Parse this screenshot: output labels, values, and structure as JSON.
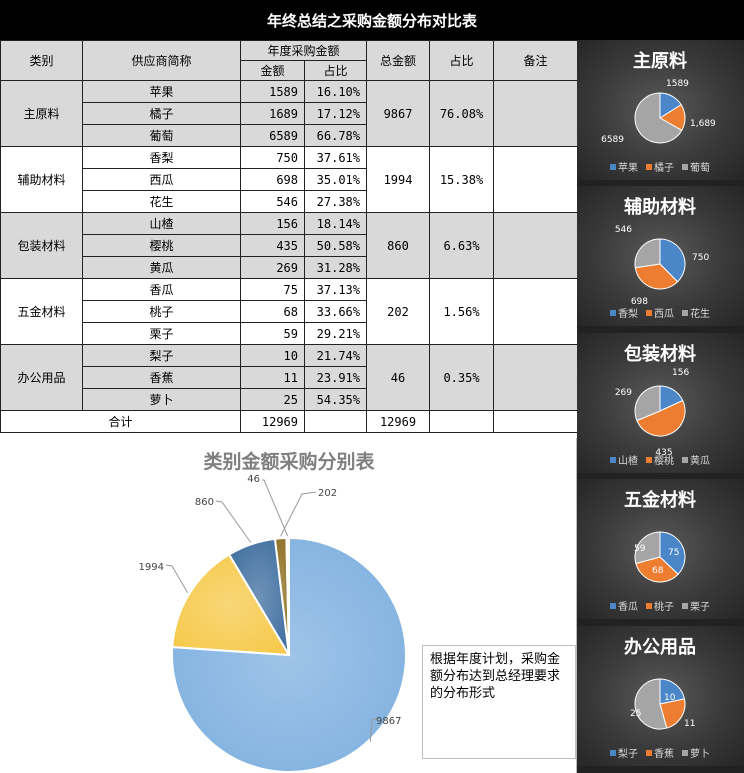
{
  "title": "年终总结之采购金额分布对比表",
  "table": {
    "headers": {
      "category": "类别",
      "supplier": "供应商简称",
      "annual": "年度采购金额",
      "amount": "金额",
      "ratio": "占比",
      "total": "总金额",
      "share": "占比",
      "remark": "备注"
    },
    "groups": [
      {
        "category": "主原料",
        "total": "9867",
        "share": "76.08%",
        "rows": [
          {
            "name": "苹果",
            "amount": "1589",
            "ratio": "16.10%"
          },
          {
            "name": "橘子",
            "amount": "1689",
            "ratio": "17.12%"
          },
          {
            "name": "葡萄",
            "amount": "6589",
            "ratio": "66.78%"
          }
        ]
      },
      {
        "category": "辅助材料",
        "total": "1994",
        "share": "15.38%",
        "rows": [
          {
            "name": "香梨",
            "amount": "750",
            "ratio": "37.61%"
          },
          {
            "name": "西瓜",
            "amount": "698",
            "ratio": "35.01%"
          },
          {
            "name": "花生",
            "amount": "546",
            "ratio": "27.38%"
          }
        ]
      },
      {
        "category": "包装材料",
        "total": "860",
        "share": "6.63%",
        "rows": [
          {
            "name": "山楂",
            "amount": "156",
            "ratio": "18.14%"
          },
          {
            "name": "樱桃",
            "amount": "435",
            "ratio": "50.58%"
          },
          {
            "name": "黄瓜",
            "amount": "269",
            "ratio": "31.28%"
          }
        ]
      },
      {
        "category": "五金材料",
        "total": "202",
        "share": "1.56%",
        "rows": [
          {
            "name": "香瓜",
            "amount": "75",
            "ratio": "37.13%"
          },
          {
            "name": "桃子",
            "amount": "68",
            "ratio": "33.66%"
          },
          {
            "name": "栗子",
            "amount": "59",
            "ratio": "29.21%"
          }
        ]
      },
      {
        "category": "办公用品",
        "total": "46",
        "share": "0.35%",
        "rows": [
          {
            "name": "梨子",
            "amount": "10",
            "ratio": "21.74%"
          },
          {
            "name": "香蕉",
            "amount": "11",
            "ratio": "23.91%"
          },
          {
            "name": "萝卜",
            "amount": "25",
            "ratio": "54.35%"
          }
        ]
      }
    ],
    "footer": {
      "label": "合计",
      "amount": "12969",
      "total": "12969"
    }
  },
  "note": "根据年度计划，采购金额分布达到总经理要求的分布形式",
  "colors": {
    "main_pie": [
      "#7fb0e0",
      "#f6c94a",
      "#3f6e9f",
      "#8c6d1f"
    ],
    "mini_pie": [
      "#4a86c8",
      "#ed7d31",
      "#a5a5a5"
    ],
    "panel_bg": "#333333"
  },
  "chart_data": [
    {
      "type": "pie",
      "title": "类别金额采购分别表",
      "categories": [
        "主原料",
        "辅助材料",
        "包装材料",
        "五金材料",
        "办公用品"
      ],
      "values": [
        9867,
        1994,
        860,
        202,
        46
      ],
      "labels": [
        "9867",
        "1994",
        "860",
        "202",
        "46"
      ]
    },
    {
      "type": "pie",
      "title": "主原料",
      "categories": [
        "苹果",
        "橘子",
        "葡萄"
      ],
      "values": [
        1589,
        1689,
        6589
      ],
      "labels": [
        "1589",
        "1,689",
        "6589"
      ],
      "legend": "bottom"
    },
    {
      "type": "pie",
      "title": "辅助材料",
      "categories": [
        "香梨",
        "西瓜",
        "花生"
      ],
      "values": [
        750,
        698,
        546
      ],
      "labels": [
        "750",
        "698",
        "546"
      ],
      "legend": "bottom"
    },
    {
      "type": "pie",
      "title": "包装材料",
      "categories": [
        "山楂",
        "樱桃",
        "黄瓜"
      ],
      "values": [
        156,
        435,
        269
      ],
      "labels": [
        "156",
        "435",
        "269"
      ],
      "legend": "bottom"
    },
    {
      "type": "pie",
      "title": "五金材料",
      "categories": [
        "香瓜",
        "桃子",
        "栗子"
      ],
      "values": [
        75,
        68,
        59
      ],
      "labels": [
        "75",
        "68",
        "59"
      ],
      "legend": "bottom"
    },
    {
      "type": "pie",
      "title": "办公用品",
      "categories": [
        "梨子",
        "香蕉",
        "萝卜"
      ],
      "values": [
        10,
        11,
        25
      ],
      "labels": [
        "10",
        "11",
        "25"
      ],
      "legend": "bottom"
    }
  ]
}
